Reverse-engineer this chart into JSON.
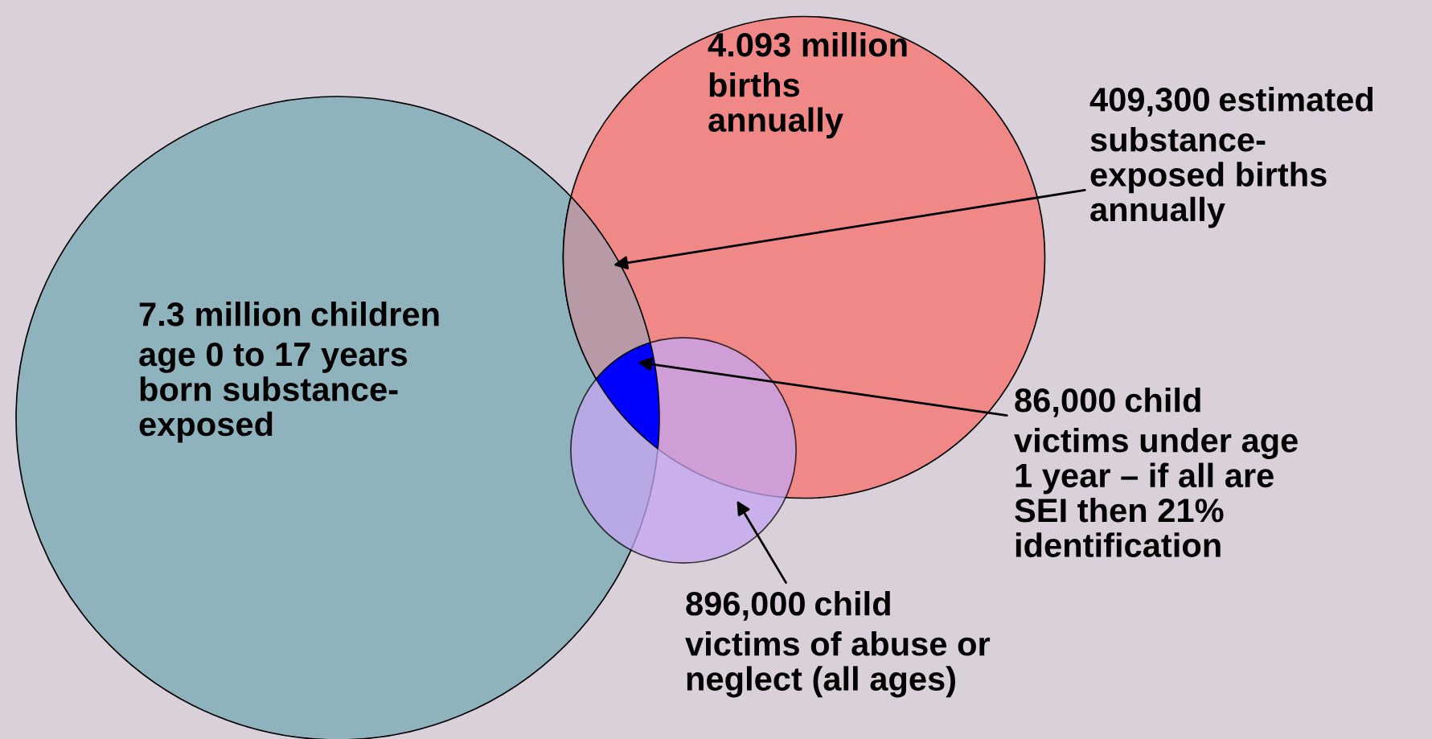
{
  "chart_data": {
    "type": "other",
    "categories": [
      "children\nage 0 to 17 years\nborn substance-\nexposed",
      "\nbirths\nannually",
      "child\nvictims of abuse or\nneglect (all ages)",
      "estimated\nsubstance-\nexposed births\nannually",
      "child\nvictims under age\n1 year – if all are\nSEI then 21%\nidentification"
    ],
    "values": [
      7300000,
      4093000,
      896000,
      409300,
      86000
    ],
    "value_labels": [
      "7.3 million",
      "4.093 million",
      "896,000",
      "409,300",
      "86,000"
    ],
    "colors": [
      "#8fb3bd",
      "#f08888",
      "#c6a6f2",
      "#b89aa6",
      "#0000ff"
    ]
  }
}
